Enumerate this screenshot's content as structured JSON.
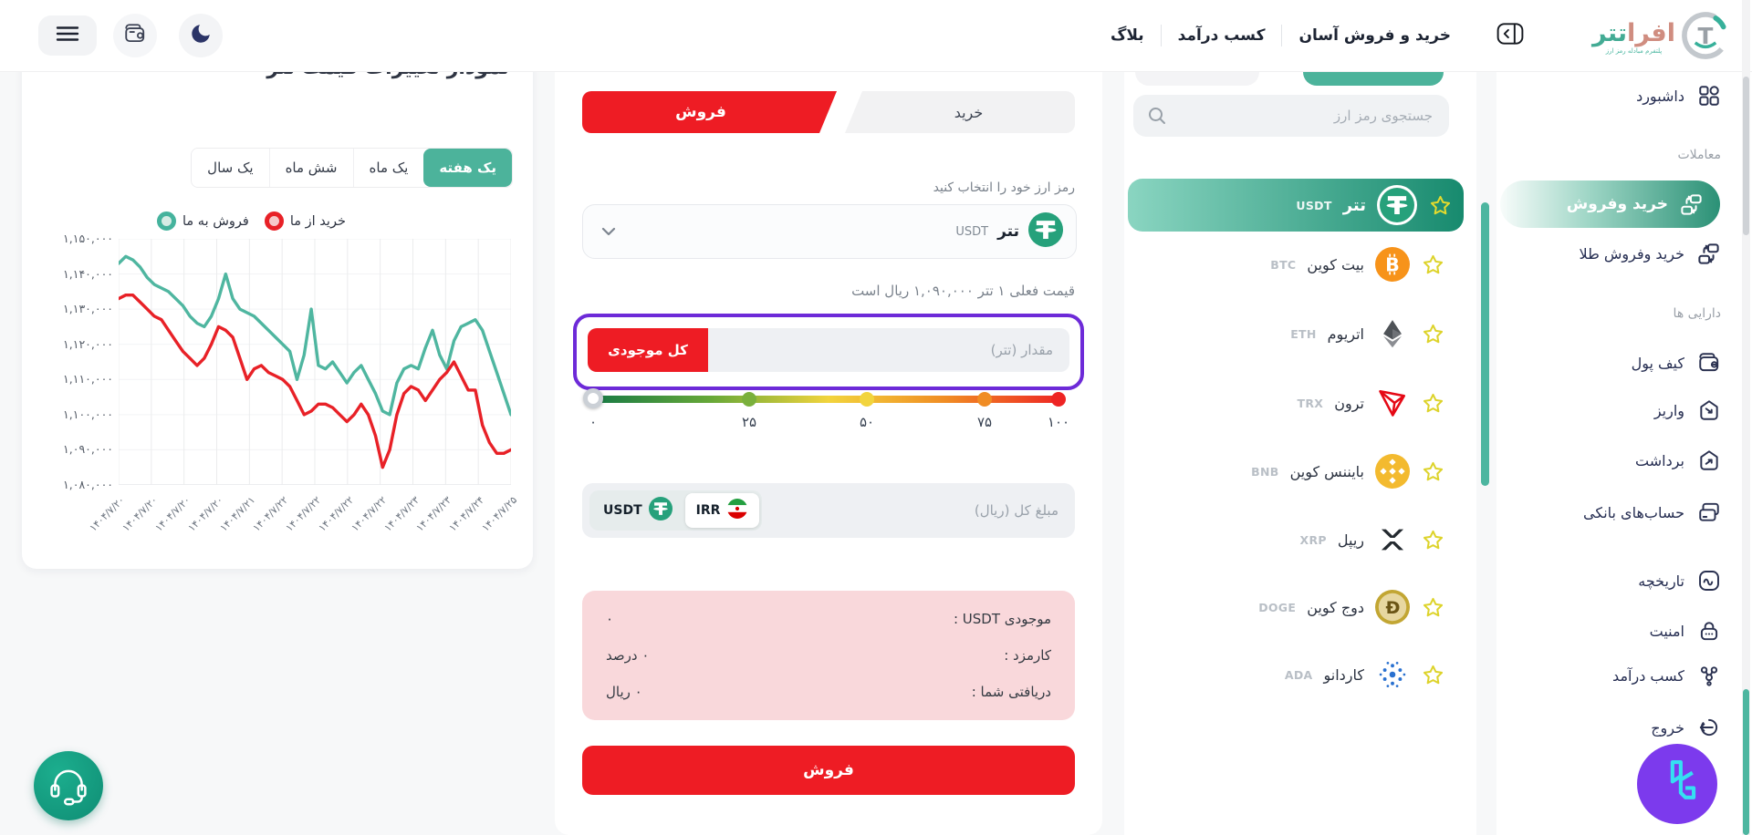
{
  "colors": {
    "accent_teal": "#45b39d",
    "brand_red": "#ee1c24",
    "highlight_purple": "#6d2ad8",
    "summary_pink": "#f9d8db",
    "tether_green": "#26a17b"
  },
  "nav": {
    "links": [
      {
        "label": "بلاگ"
      },
      {
        "label": "کسب درآمد"
      },
      {
        "label": "خرید و فروش آسان"
      }
    ],
    "logo": {
      "part1": "افرا",
      "part2": "تتر",
      "tagline": "پلتفرم مبادله رمز ارز"
    }
  },
  "sidebar": {
    "items": [
      {
        "label": "داشبورد",
        "icon": "dashboard"
      },
      {
        "label": "معاملات",
        "header": true
      },
      {
        "label": "خرید وفروش",
        "icon": "buy-sell",
        "active": true
      },
      {
        "label": "خرید وفروش طلا",
        "icon": "gold-trade"
      },
      {
        "label": "دارایی ها",
        "header": true
      },
      {
        "label": "کیف پول",
        "icon": "wallet"
      },
      {
        "label": "واریز",
        "icon": "deposit"
      },
      {
        "label": "برداشت",
        "icon": "withdraw"
      },
      {
        "label": "حساب‌های بانکی",
        "icon": "bank-accounts"
      },
      {
        "label": "تاریخچه",
        "icon": "history"
      },
      {
        "label": "امنیت",
        "icon": "security"
      },
      {
        "label": "کسب درآمد",
        "icon": "earn"
      },
      {
        "label": "خروج",
        "icon": "logout"
      }
    ]
  },
  "market": {
    "search_placeholder": "جستجوی رمز ارز",
    "coins": [
      {
        "name": "تتر",
        "symbol": "USDT",
        "selected": true
      },
      {
        "name": "بیت کوین",
        "symbol": "BTC"
      },
      {
        "name": "اتریوم",
        "symbol": "ETH"
      },
      {
        "name": "ترون",
        "symbol": "TRX"
      },
      {
        "name": "بایننس کوین",
        "symbol": "BNB"
      },
      {
        "name": "ریپل",
        "symbol": "XRP"
      },
      {
        "name": "دوج کوین",
        "symbol": "DOGE"
      },
      {
        "name": "کاردانو",
        "symbol": "ADA"
      }
    ]
  },
  "form": {
    "tab_sell": "فروش",
    "tab_buy": "خرید",
    "select_hint": "رمز ارز خود را انتخاب کنید",
    "selected_coin_name": "تتر",
    "selected_coin_symbol": "USDT",
    "price_text": "قیمت فعلی ۱ تتر ۱,۰۹۰,۰۰۰ ریال است",
    "amount_placeholder": "مقدار (تتر)",
    "max_button": "کل موجودی",
    "slider_labels": [
      "۰",
      "۲۵",
      "۵۰",
      "۷۵",
      "۱۰۰"
    ],
    "total_placeholder": "مبلغ کل (ریال)",
    "currency_usdt": "USDT",
    "currency_irr": "IRR",
    "summary": [
      {
        "label": "موجودی USDT :",
        "value": "۰"
      },
      {
        "label": "کارمزد :",
        "value": "۰ درصد"
      },
      {
        "label": "دریافتی شما :",
        "value": "۰ ریال"
      }
    ],
    "submit_label": "فروش"
  },
  "chart_data": {
    "type": "line",
    "title": "نمودار تغییرات قیمت تتر",
    "period_tabs": [
      "یک سال",
      "شش ماه",
      "یک ماه",
      "یک هفته"
    ],
    "active_period": "یک هفته",
    "legend": [
      {
        "label": "فروش به ما",
        "color": "#45b39d"
      },
      {
        "label": "خرید از ما",
        "color": "#e82127"
      }
    ],
    "legend_position": "top",
    "grid": true,
    "ylim": [
      1080000,
      1150000
    ],
    "yticks": [
      "۱,۱۵۰,۰۰۰",
      "۱,۱۴۰,۰۰۰",
      "۱,۱۳۰,۰۰۰",
      "۱,۱۲۰,۰۰۰",
      "۱,۱۱۰,۰۰۰",
      "۱,۱۰۰,۰۰۰",
      "۱,۰۹۰,۰۰۰",
      "۱,۰۸۰,۰۰۰"
    ],
    "xticks": [
      "۱۴۰۴/۷/۲۰",
      "۱۴۰۴/۷/۲۰",
      "۱۴۰۴/۷/۲۰",
      "۱۴۰۴/۷/۲۰",
      "۱۴۰۴/۷/۲۱",
      "۱۴۰۴/۷/۲۲",
      "۱۴۰۴/۷/۲۲",
      "۱۴۰۴/۷/۲۲",
      "۱۴۰۴/۷/۲۲",
      "۱۴۰۴/۷/۲۳",
      "۱۴۰۴/۷/۲۳",
      "۱۴۰۴/۷/۲۴",
      "۱۴۰۴/۷/۲۵"
    ],
    "series": [
      {
        "name": "فروش به ما",
        "color": "#4fb6a0",
        "values": [
          1143000,
          1145000,
          1144000,
          1142000,
          1139000,
          1137000,
          1136000,
          1135000,
          1133000,
          1131000,
          1128000,
          1126000,
          1125000,
          1128000,
          1133000,
          1140000,
          1133000,
          1130000,
          1129000,
          1128000,
          1126000,
          1124000,
          1122000,
          1120000,
          1118000,
          1110000,
          1117000,
          1130000,
          1114000,
          1113000,
          1115000,
          1112000,
          1109000,
          1112000,
          1114000,
          1110000,
          1106000,
          1101000,
          1100000,
          1109000,
          1113000,
          1114000,
          1113000,
          1119000,
          1124000,
          1117000,
          1113000,
          1121000,
          1125000,
          1126000,
          1127000,
          1124000,
          1118000,
          1112000,
          1106000,
          1100000
        ]
      },
      {
        "name": "خرید از ما",
        "color": "#e82127",
        "values": [
          1133000,
          1134000,
          1134000,
          1132000,
          1130000,
          1128000,
          1127000,
          1124000,
          1121000,
          1118000,
          1116000,
          1114000,
          1116000,
          1120000,
          1125000,
          1124000,
          1122000,
          1116000,
          1110000,
          1113000,
          1114000,
          1112000,
          1111000,
          1110000,
          1108000,
          1104000,
          1100000,
          1101000,
          1103000,
          1103000,
          1102000,
          1100000,
          1098000,
          1100000,
          1103000,
          1100000,
          1094000,
          1085000,
          1090000,
          1100000,
          1106000,
          1108000,
          1107000,
          1104000,
          1107000,
          1110000,
          1112000,
          1115000,
          1111000,
          1107000,
          1107000,
          1097000,
          1092000,
          1089000,
          1089000,
          1090000
        ]
      }
    ]
  }
}
